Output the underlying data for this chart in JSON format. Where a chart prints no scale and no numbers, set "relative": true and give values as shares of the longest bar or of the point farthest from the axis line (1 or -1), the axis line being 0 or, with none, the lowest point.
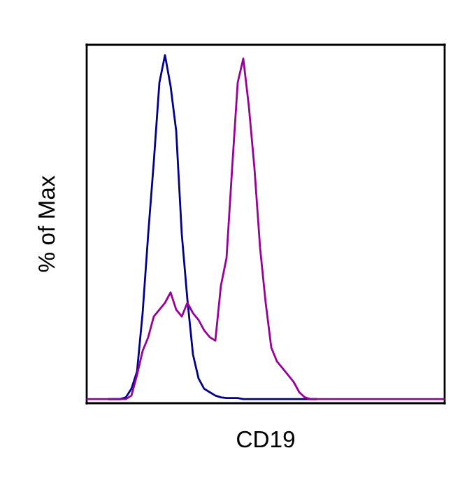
{
  "chart_data": {
    "type": "line",
    "ylabel": "% of Max",
    "xlabel": "CD19",
    "relative": true,
    "tick_labels": false,
    "legend": false,
    "categories": [
      null,
      null,
      null,
      null,
      null,
      null,
      null,
      null,
      null,
      null,
      null,
      null,
      null,
      null,
      null,
      null,
      null,
      null,
      null,
      null,
      null,
      null,
      null,
      null,
      null,
      null,
      null,
      null,
      null,
      null,
      null,
      null,
      null,
      null,
      null,
      null,
      null,
      null,
      null,
      null,
      null,
      null,
      null,
      null,
      null,
      null,
      null,
      null,
      null,
      null,
      null,
      null,
      null,
      null,
      null,
      null,
      null,
      null,
      null,
      null,
      null,
      null,
      null,
      null,
      null
    ],
    "series": [
      {
        "color": "#00008b",
        "values": [
          null,
          null,
          null,
          null,
          0,
          0,
          0,
          0.005,
          0.03,
          0.08,
          0.25,
          0.48,
          0.69,
          0.92,
          1.0,
          0.91,
          0.78,
          0.48,
          0.29,
          0.13,
          0.06,
          0.03,
          0.02,
          0.01,
          0.005,
          0.003,
          0.003,
          0.003,
          0,
          0,
          0,
          0,
          0,
          0,
          0,
          0,
          0,
          0,
          0,
          0,
          0,
          0,
          null,
          null,
          null,
          null,
          null,
          null,
          null,
          null,
          null,
          null,
          null,
          null,
          null,
          null,
          null,
          null,
          null,
          null,
          null,
          null,
          null,
          null,
          null
        ]
      },
      {
        "color": "#990099",
        "values": [
          0,
          0,
          0,
          0,
          0,
          0,
          0,
          0,
          0.01,
          0.07,
          0.14,
          0.18,
          0.24,
          0.26,
          0.28,
          0.31,
          0.26,
          0.24,
          0.28,
          0.25,
          0.23,
          0.2,
          0.18,
          0.17,
          0.33,
          0.41,
          0.67,
          0.92,
          0.99,
          0.85,
          0.67,
          0.44,
          0.28,
          0.15,
          0.11,
          0.09,
          0.07,
          0.05,
          0.02,
          0.005,
          0,
          0,
          0,
          0,
          0,
          0,
          0,
          0,
          0,
          0,
          0,
          0,
          0,
          0,
          0,
          0,
          0,
          0,
          0,
          0,
          0,
          0,
          0,
          0,
          0
        ]
      }
    ]
  }
}
